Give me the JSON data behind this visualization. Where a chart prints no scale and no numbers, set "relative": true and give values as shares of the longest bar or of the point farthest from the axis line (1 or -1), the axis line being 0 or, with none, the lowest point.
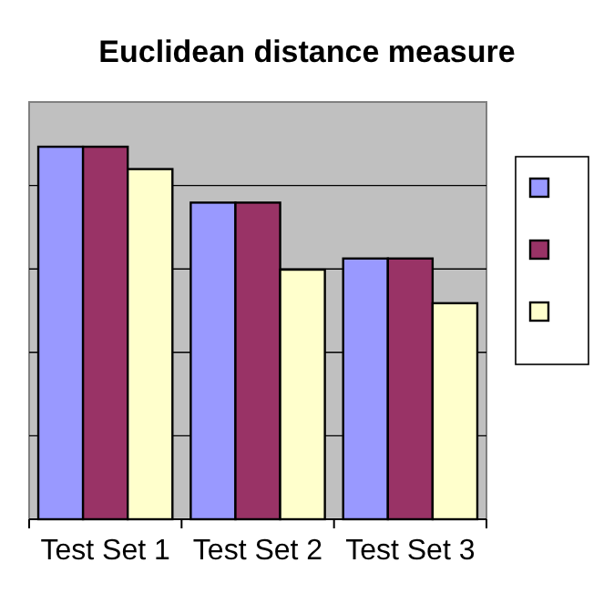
{
  "chart_data": {
    "type": "bar",
    "title": "Euclidean distance measure",
    "categories": [
      "Test Set 1",
      "Test Set 2",
      "Test Set 3"
    ],
    "relative": true,
    "grid": true,
    "series": [
      {
        "color": "#9999ff",
        "values": [
          1,
          0.85,
          0.7
        ]
      },
      {
        "color": "#993366",
        "values": [
          1,
          0.85,
          0.7
        ]
      },
      {
        "color": "#ffffcc",
        "values": [
          0.94,
          0.67,
          0.58
        ]
      }
    ]
  }
}
